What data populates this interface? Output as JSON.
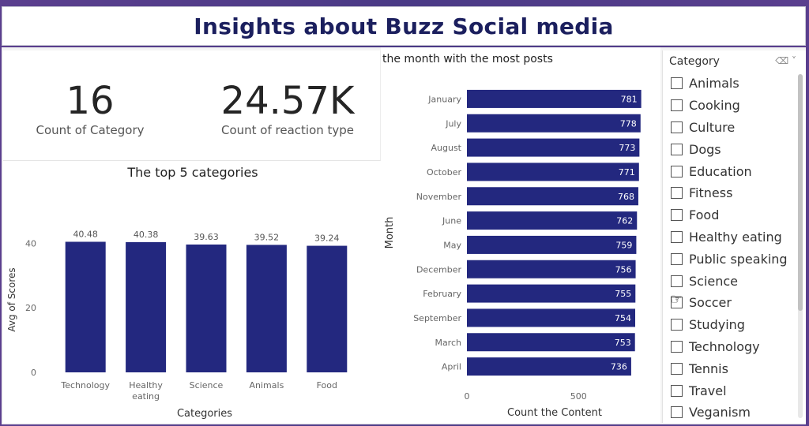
{
  "title": "Insights about Buzz Social media",
  "kpis": [
    {
      "value": "16",
      "label": "Count of Category"
    },
    {
      "value": "24.57K",
      "label": "Count of reaction type"
    }
  ],
  "chart_data": [
    {
      "type": "bar",
      "title": "The top 5 categories",
      "xlabel": "Categories",
      "ylabel": "Avg of Scores",
      "categories": [
        "Technology",
        "Healthy eating",
        "Science",
        "Animals",
        "Food"
      ],
      "category_lines": [
        [
          "Technology"
        ],
        [
          "Healthy",
          "eating"
        ],
        [
          "Science"
        ],
        [
          "Animals"
        ],
        [
          "Food"
        ]
      ],
      "values": [
        40.48,
        40.38,
        39.63,
        39.52,
        39.24
      ],
      "value_labels": [
        "40.48",
        "40.38",
        "39.63",
        "39.52",
        "39.24"
      ],
      "ylim": [
        0,
        45
      ],
      "yticks": [
        0,
        20,
        40
      ],
      "grid": false,
      "color": "#23287f"
    },
    {
      "type": "bar",
      "orientation": "horizontal",
      "title": "the month with the most posts",
      "xlabel": "Count the Content",
      "ylabel": "Month",
      "categories": [
        "January",
        "July",
        "August",
        "October",
        "November",
        "June",
        "May",
        "December",
        "February",
        "September",
        "March",
        "April"
      ],
      "values": [
        781,
        778,
        773,
        771,
        768,
        762,
        759,
        756,
        755,
        754,
        753,
        736
      ],
      "xlim": [
        0,
        800
      ],
      "xticks": [
        0,
        500
      ],
      "grid": false,
      "color": "#23287f"
    }
  ],
  "slicer": {
    "title": "Category",
    "items": [
      "Animals",
      "Cooking",
      "Culture",
      "Dogs",
      "Education",
      "Fitness",
      "Food",
      "Healthy eating",
      "Public speaking",
      "Science",
      "Soccer",
      "Studying",
      "Technology",
      "Tennis",
      "Travel",
      "Veganism"
    ]
  }
}
